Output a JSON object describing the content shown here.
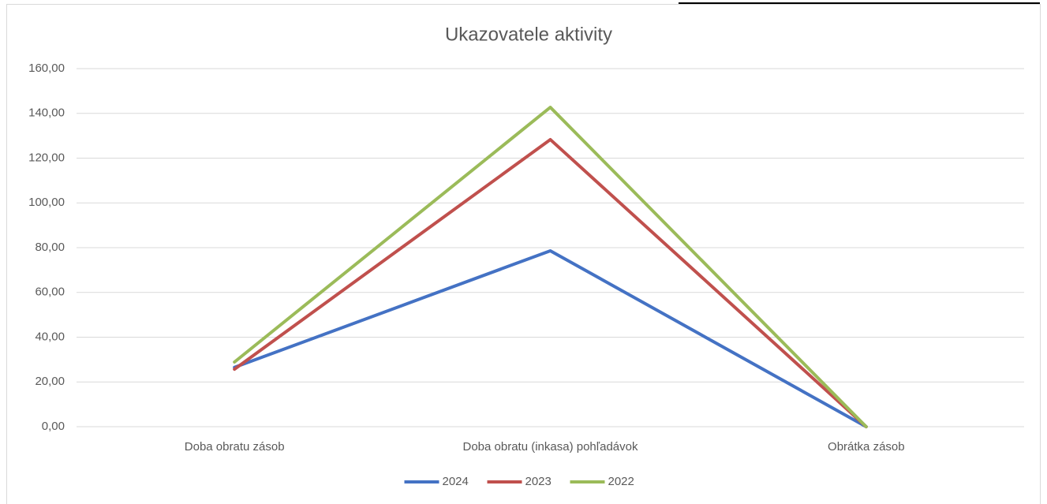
{
  "chart_data": {
    "type": "line",
    "title": "Ukazovatele aktivity",
    "categories": [
      "Doba obratu zásob",
      "Doba obratu (inkasa)  pohľadávok",
      "Obrátka zásob"
    ],
    "series": [
      {
        "name": "2024",
        "color": "#4472c4",
        "values": [
          26.5,
          78.6,
          0
        ]
      },
      {
        "name": "2023",
        "color": "#c0504d",
        "values": [
          25.7,
          128.3,
          0
        ]
      },
      {
        "name": "2022",
        "color": "#9bbb59",
        "values": [
          28.9,
          142.7,
          0
        ]
      }
    ],
    "ylim": [
      0,
      160
    ],
    "yticks": [
      {
        "value": 0,
        "label": "0,00"
      },
      {
        "value": 20,
        "label": "20,00"
      },
      {
        "value": 40,
        "label": "40,00"
      },
      {
        "value": 60,
        "label": "60,00"
      },
      {
        "value": 80,
        "label": "80,00"
      },
      {
        "value": 100,
        "label": "100,00"
      },
      {
        "value": 120,
        "label": "120,00"
      },
      {
        "value": 140,
        "label": "140,00"
      },
      {
        "value": 160,
        "label": "160,00"
      }
    ],
    "grid": true,
    "legend": "bottom"
  }
}
